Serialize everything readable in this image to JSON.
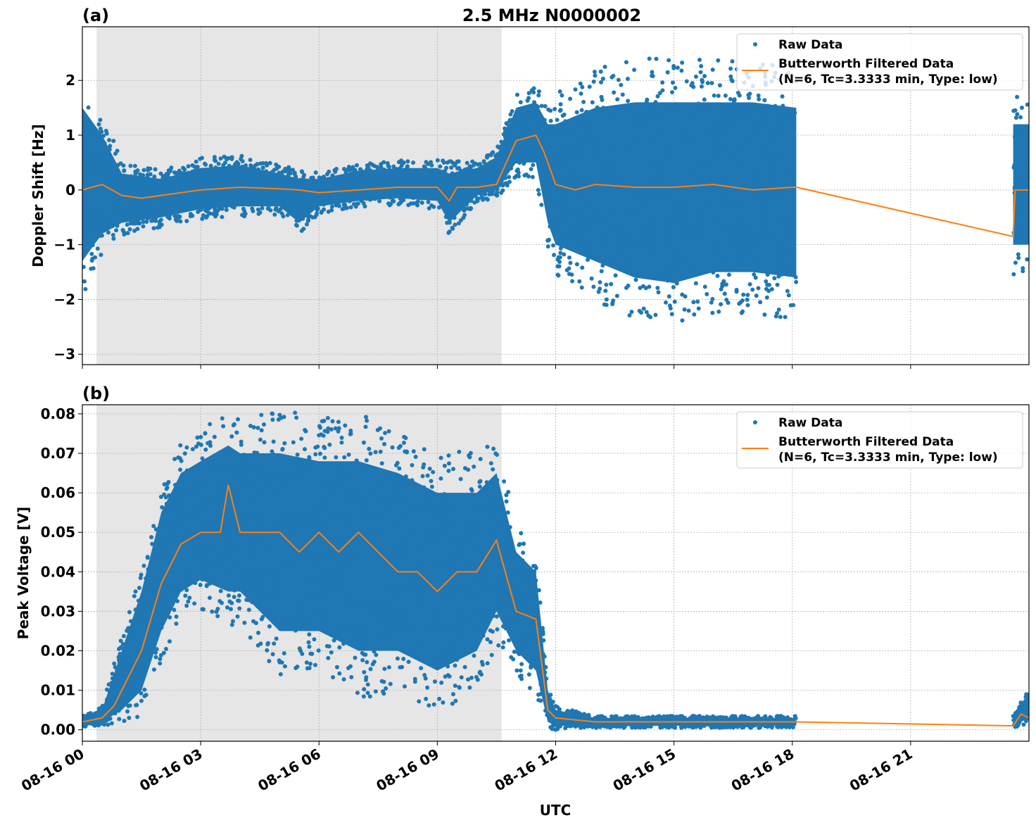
{
  "title": "2.5 MHz N0000002",
  "xlabel": "UTC",
  "x_ticks": [
    "08-16 00",
    "08-16 03",
    "08-16 06",
    "08-16 09",
    "08-16 12",
    "08-16 15",
    "08-16 18",
    "08-16 21"
  ],
  "x_tick_hours": [
    0,
    3,
    6,
    9,
    12,
    15,
    18,
    21
  ],
  "xlim_hours": [
    0,
    24
  ],
  "shaded_interval_hours": [
    0.36,
    10.63
  ],
  "colors": {
    "raw": "#1f77b4",
    "filtered": "#ff7f0e",
    "shade": "#e6e6e6"
  },
  "legend": {
    "raw": "Raw Data",
    "filtered_line1": "Butterworth Filtered Data",
    "filtered_line2": "(N=6, Tc=3.3333 min, Type: low)",
    "placement": "top-right"
  },
  "chart_data": [
    {
      "type": "scatter+line",
      "panel_label": "(a)",
      "ylabel": "Doppler Shift [Hz]",
      "ylim": [
        -3.19,
        2.98
      ],
      "grid": true,
      "y_ticks": [
        {
          "v": 2,
          "label": "2"
        },
        {
          "v": 1,
          "label": "1"
        },
        {
          "v": 0,
          "label": "0"
        },
        {
          "v": -1,
          "label": "−1"
        },
        {
          "v": -2,
          "label": "−2"
        },
        {
          "v": -3,
          "label": "−3"
        }
      ],
      "raw_envelope": [
        [
          0,
          -1.3,
          1.5
        ],
        [
          0.5,
          -0.8,
          1.0
        ],
        [
          1,
          -0.6,
          0.3
        ],
        [
          2,
          -0.5,
          0.2
        ],
        [
          3,
          -0.35,
          0.4
        ],
        [
          4,
          -0.3,
          0.45
        ],
        [
          5,
          -0.3,
          0.3
        ],
        [
          5.5,
          -0.6,
          0.2
        ],
        [
          6,
          -0.3,
          0.2
        ],
        [
          7,
          -0.2,
          0.35
        ],
        [
          8,
          -0.15,
          0.4
        ],
        [
          9,
          -0.2,
          0.4
        ],
        [
          9.3,
          -0.6,
          0.3
        ],
        [
          10,
          -0.1,
          0.4
        ],
        [
          10.5,
          0,
          0.6
        ],
        [
          11,
          0.5,
          1.5
        ],
        [
          11.5,
          0.5,
          1.6
        ],
        [
          11.8,
          -0.6,
          1.2
        ],
        [
          12,
          -1.0,
          1.2
        ],
        [
          13,
          -1.3,
          1.5
        ],
        [
          14,
          -1.6,
          1.6
        ],
        [
          15,
          -1.7,
          1.6
        ],
        [
          16,
          -1.5,
          1.6
        ],
        [
          17,
          -1.5,
          1.6
        ],
        [
          18.1,
          -1.6,
          1.5
        ],
        null,
        [
          23.6,
          -1.0,
          1.2
        ],
        [
          24,
          -1.0,
          1.2
        ]
      ],
      "filtered": [
        [
          0,
          0
        ],
        [
          0.5,
          0.1
        ],
        [
          1,
          -0.1
        ],
        [
          1.5,
          -0.15
        ],
        [
          2,
          -0.1
        ],
        [
          3,
          0
        ],
        [
          4,
          0.05
        ],
        [
          5,
          0.02
        ],
        [
          5.5,
          0
        ],
        [
          6,
          -0.05
        ],
        [
          7,
          0
        ],
        [
          8,
          0.05
        ],
        [
          9,
          0.05
        ],
        [
          9.3,
          -0.2
        ],
        [
          9.5,
          0.05
        ],
        [
          10,
          0.05
        ],
        [
          10.5,
          0.1
        ],
        [
          11,
          0.9
        ],
        [
          11.5,
          1.0
        ],
        [
          11.7,
          0.7
        ],
        [
          12,
          0.1
        ],
        [
          12.5,
          0
        ],
        [
          13,
          0.1
        ],
        [
          14,
          0.05
        ],
        [
          15,
          0.05
        ],
        [
          16,
          0.1
        ],
        [
          17,
          0
        ],
        [
          18,
          0.05
        ],
        [
          18.1,
          0.05
        ],
        [
          23.6,
          -0.85
        ],
        [
          23.65,
          0
        ],
        [
          24,
          0
        ]
      ]
    },
    {
      "type": "scatter+line",
      "panel_label": "(b)",
      "ylabel": "Peak Voltage [V]",
      "ylim": [
        -0.0029,
        0.0823
      ],
      "grid": true,
      "y_ticks": [
        {
          "v": 0.08,
          "label": "0.08"
        },
        {
          "v": 0.07,
          "label": "0.07"
        },
        {
          "v": 0.06,
          "label": "0.06"
        },
        {
          "v": 0.05,
          "label": "0.05"
        },
        {
          "v": 0.04,
          "label": "0.04"
        },
        {
          "v": 0.03,
          "label": "0.03"
        },
        {
          "v": 0.02,
          "label": "0.02"
        },
        {
          "v": 0.01,
          "label": "0.01"
        },
        {
          "v": 0,
          "label": "0.00"
        }
      ],
      "raw_envelope": [
        [
          0,
          0.001,
          0.003
        ],
        [
          0.5,
          0.002,
          0.005
        ],
        [
          1,
          0.005,
          0.02
        ],
        [
          1.5,
          0.01,
          0.035
        ],
        [
          2,
          0.025,
          0.055
        ],
        [
          2.5,
          0.035,
          0.065
        ],
        [
          3,
          0.038,
          0.068
        ],
        [
          3.7,
          0.035,
          0.072
        ],
        [
          4,
          0.035,
          0.07
        ],
        [
          5,
          0.025,
          0.07
        ],
        [
          6,
          0.025,
          0.068
        ],
        [
          7,
          0.02,
          0.068
        ],
        [
          8,
          0.02,
          0.065
        ],
        [
          9,
          0.015,
          0.06
        ],
        [
          10,
          0.02,
          0.06
        ],
        [
          10.5,
          0.03,
          0.065
        ],
        [
          11,
          0.02,
          0.045
        ],
        [
          11.5,
          0.015,
          0.04
        ],
        [
          11.8,
          0.002,
          0.01
        ],
        [
          12,
          0.001,
          0.005
        ],
        [
          13,
          0.001,
          0.003
        ],
        [
          18.1,
          0.001,
          0.003
        ],
        null,
        [
          23.6,
          0.001,
          0.003
        ],
        [
          24,
          0.003,
          0.009
        ]
      ],
      "filtered": [
        [
          0,
          0.002
        ],
        [
          0.5,
          0.003
        ],
        [
          0.8,
          0.006
        ],
        [
          1,
          0.01
        ],
        [
          1.5,
          0.02
        ],
        [
          2,
          0.037
        ],
        [
          2.5,
          0.047
        ],
        [
          3,
          0.05
        ],
        [
          3.5,
          0.05
        ],
        [
          3.7,
          0.062
        ],
        [
          4,
          0.05
        ],
        [
          4.5,
          0.05
        ],
        [
          5,
          0.05
        ],
        [
          5.5,
          0.045
        ],
        [
          6,
          0.05
        ],
        [
          6.5,
          0.045
        ],
        [
          7,
          0.05
        ],
        [
          7.5,
          0.045
        ],
        [
          8,
          0.04
        ],
        [
          8.5,
          0.04
        ],
        [
          9,
          0.035
        ],
        [
          9.5,
          0.04
        ],
        [
          10,
          0.04
        ],
        [
          10.5,
          0.048
        ],
        [
          11,
          0.03
        ],
        [
          11.5,
          0.028
        ],
        [
          11.8,
          0.005
        ],
        [
          12,
          0.003
        ],
        [
          13,
          0.002
        ],
        [
          18.1,
          0.002
        ],
        [
          23.6,
          0.001
        ],
        [
          23.8,
          0.004
        ],
        [
          24,
          0.003
        ]
      ]
    }
  ]
}
